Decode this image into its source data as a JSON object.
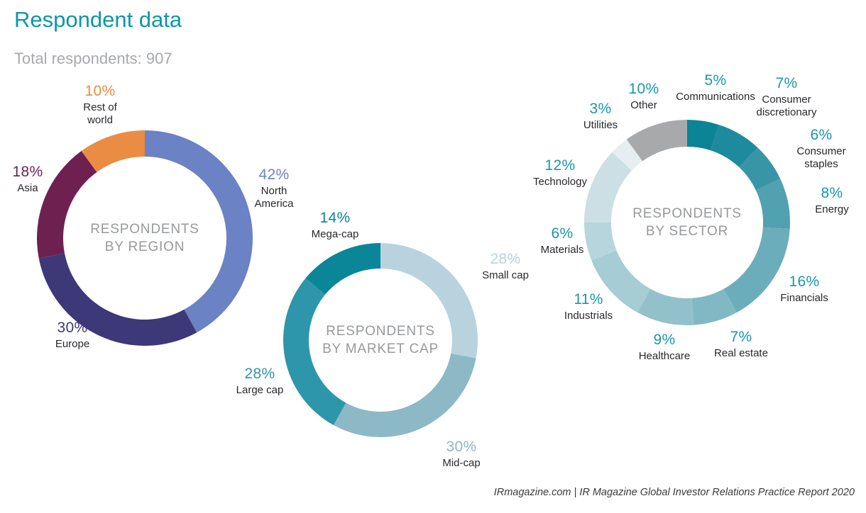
{
  "header": {
    "title": "Respondent data",
    "subtitle": "Total respondents: 907"
  },
  "footer": {
    "text": "IRmagazine.com | IR Magazine Global Investor Relations Practice Report 2020"
  },
  "colors": {
    "accent_teal": "#0d96a9",
    "pct_teal": "#1898ab",
    "subtitle_gray": "#a7a9ac",
    "center_text_gray": "#97999b",
    "label_dark": "#29272c"
  },
  "chart_data": [
    {
      "type": "donut",
      "name": "region",
      "center_label": "RESPONDENTS\nBY REGION",
      "segments": [
        {
          "label": "North America",
          "display_label": "North\nAmerica",
          "pct": "42%",
          "value": 42,
          "color": "#6b82c4",
          "pct_color": "#6b82c4"
        },
        {
          "label": "Europe",
          "display_label": "Europe",
          "pct": "30%",
          "value": 30,
          "color": "#3d3878",
          "pct_color": "#3d3878"
        },
        {
          "label": "Asia",
          "display_label": "Asia",
          "pct": "18%",
          "value": 18,
          "color": "#6e2150",
          "pct_color": "#6e2150"
        },
        {
          "label": "Rest of world",
          "display_label": "Rest of\nworld",
          "pct": "10%",
          "value": 10,
          "color": "#ea8c43",
          "pct_color": "#ea8c43"
        }
      ]
    },
    {
      "type": "donut",
      "name": "market-cap",
      "center_label": "RESPONDENTS\nBY MARKET CAP",
      "segments": [
        {
          "label": "Small cap",
          "display_label": "Small cap",
          "pct": "28%",
          "value": 28,
          "color": "#b8d3de",
          "pct_color": "#b8d3de"
        },
        {
          "label": "Mid-cap",
          "display_label": "Mid-cap",
          "pct": "30%",
          "value": 30,
          "color": "#8db9c7",
          "pct_color": "#8db9c7"
        },
        {
          "label": "Large cap",
          "display_label": "Large cap",
          "pct": "28%",
          "value": 28,
          "color": "#2e96ab",
          "pct_color": "#2e96ab"
        },
        {
          "label": "Mega-cap",
          "display_label": "Mega-cap",
          "pct": "14%",
          "value": 14,
          "color": "#0b8598",
          "pct_color": "#0b8598"
        }
      ]
    },
    {
      "type": "donut",
      "name": "sector",
      "center_label": "RESPONDENTS\nBY SECTOR",
      "segments": [
        {
          "label": "Communications",
          "display_label": "Communications",
          "pct": "5%",
          "value": 5,
          "color": "#0b8496",
          "pct_color": "#1898ab"
        },
        {
          "label": "Consumer discretionary",
          "display_label": "Consumer\ndiscretionary",
          "pct": "7%",
          "value": 7,
          "color": "#1d8b9d",
          "pct_color": "#1898ab"
        },
        {
          "label": "Consumer staples",
          "display_label": "Consumer\nstaples",
          "pct": "6%",
          "value": 6,
          "color": "#3795a6",
          "pct_color": "#1898ab"
        },
        {
          "label": "Energy",
          "display_label": "Energy",
          "pct": "8%",
          "value": 8,
          "color": "#51a1b0",
          "pct_color": "#1898ab"
        },
        {
          "label": "Financials",
          "display_label": "Financials",
          "pct": "16%",
          "value": 16,
          "color": "#6badbb",
          "pct_color": "#1898ab"
        },
        {
          "label": "Real estate",
          "display_label": "Real estate",
          "pct": "7%",
          "value": 7,
          "color": "#81b8c4",
          "pct_color": "#1898ab"
        },
        {
          "label": "Healthcare",
          "display_label": "Healthcare",
          "pct": "9%",
          "value": 9,
          "color": "#92c1cb",
          "pct_color": "#1898ab"
        },
        {
          "label": "Industrials",
          "display_label": "Industrials",
          "pct": "11%",
          "value": 11,
          "color": "#a6ccd4",
          "pct_color": "#1898ab"
        },
        {
          "label": "Materials",
          "display_label": "Materials",
          "pct": "6%",
          "value": 6,
          "color": "#b7d5dc",
          "pct_color": "#1898ab"
        },
        {
          "label": "Technology",
          "display_label": "Technology",
          "pct": "12%",
          "value": 12,
          "color": "#cbdfe5",
          "pct_color": "#1898ab"
        },
        {
          "label": "Utilities",
          "display_label": "Utilities",
          "pct": "3%",
          "value": 3,
          "color": "#e6eef1",
          "pct_color": "#1898ab"
        },
        {
          "label": "Other",
          "display_label": "Other",
          "pct": "10%",
          "value": 10,
          "color": "#a8a9ab",
          "pct_color": "#1898ab"
        }
      ]
    }
  ]
}
